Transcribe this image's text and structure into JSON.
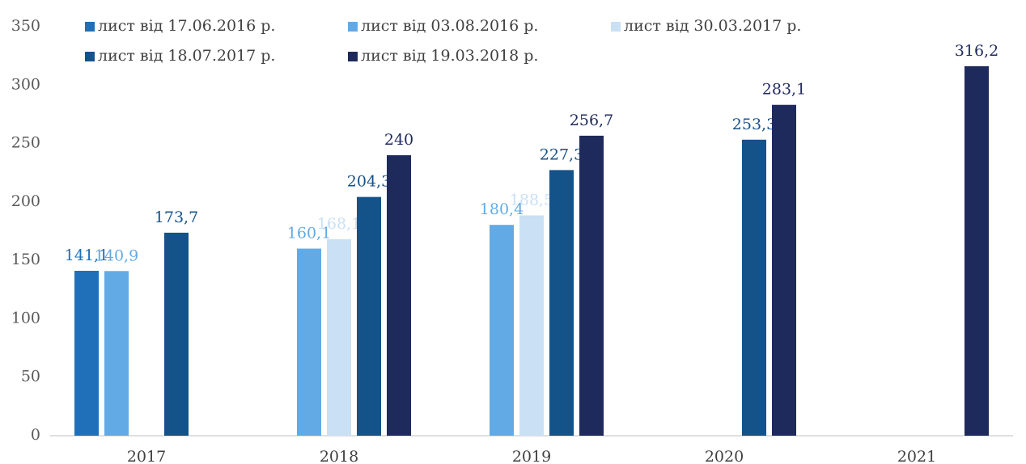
{
  "chart_data": {
    "type": "bar",
    "categories": [
      "2017",
      "2018",
      "2019",
      "2020",
      "2021"
    ],
    "series": [
      {
        "name": "лист від 17.06.2016 р.",
        "color": "#1f70b8",
        "values": [
          141.1,
          null,
          null,
          null,
          null
        ],
        "value_labels": [
          "141,1",
          null,
          null,
          null,
          null
        ]
      },
      {
        "name": "лист від 03.08.2016 р.",
        "color": "#62aae6",
        "values": [
          140.9,
          160.1,
          180.4,
          null,
          null
        ],
        "value_labels": [
          "140,9",
          "160,1",
          "180,4",
          null,
          null
        ]
      },
      {
        "name": "лист від 30.03.2017 р.",
        "color": "#c9e0f5",
        "values": [
          null,
          168.1,
          188.5,
          null,
          null
        ],
        "value_labels": [
          null,
          "168,1",
          "188,5",
          null,
          null
        ]
      },
      {
        "name": "лист від 18.07.2017 р.",
        "color": "#14528a",
        "values": [
          173.7,
          204.3,
          227.3,
          253.3,
          null
        ],
        "value_labels": [
          "173,7",
          "204,3",
          "227,3",
          "253,3",
          null
        ]
      },
      {
        "name": "лист від 19.03.2018 р.",
        "color": "#1f2a5c",
        "values": [
          null,
          240,
          256.7,
          283.1,
          316.2
        ],
        "value_labels": [
          null,
          "240",
          "256,7",
          "283,1",
          "316,2"
        ]
      }
    ],
    "ylim": [
      0,
      350
    ],
    "yticks": [
      0,
      50,
      100,
      150,
      200,
      250,
      300,
      350
    ],
    "grid": false,
    "legend": "top"
  }
}
